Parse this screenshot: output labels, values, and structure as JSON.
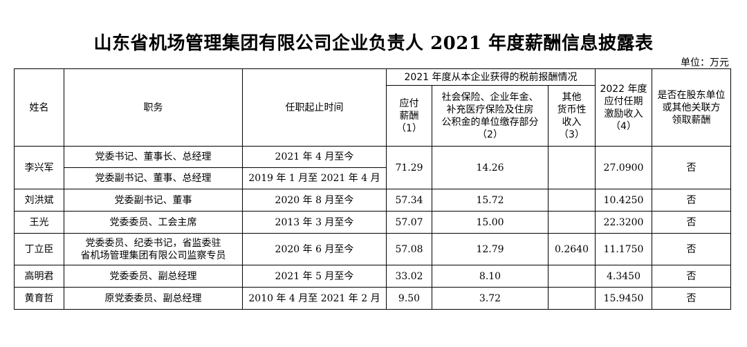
{
  "title": "山东省机场管理集团有限公司企业负责人 2021 年度薪酬信息披露表",
  "unit": "单位：万元",
  "headers": {
    "name": "姓名",
    "position": "职务",
    "term": "任职起止时间",
    "group_2021": "2021 年度从本企业获得的税前报酬情况",
    "salary": "应付\n薪酬\n（1）",
    "insurance": "社会保险、企业年金、\n补充医疗保险及住房\n公积金的单位缴存部分\n（2）",
    "other": "其他\n货币性\n收入\n（3）",
    "incentive": "2022 年度\n应付任期\n激励收入\n（4）",
    "shareholder": "是否在股东单位\n或其他关联方\n领取薪酬"
  },
  "rows": [
    {
      "name": "李兴军",
      "roles": [
        {
          "position": "党委书记、董事长、总经理",
          "term": "2021 年 4 月至今"
        },
        {
          "position": "党委副书记、董事、总经理",
          "term": "2019 年 1 月至 2021 年 4 月"
        }
      ],
      "salary": "71.29",
      "insurance": "14.26",
      "other": "",
      "incentive": "27.0900",
      "shareholder": "否"
    },
    {
      "name": "刘洪斌",
      "roles": [
        {
          "position": "党委副书记、董事",
          "term": "2020 年 8 月至今"
        }
      ],
      "salary": "57.34",
      "insurance": "15.72",
      "other": "",
      "incentive": "10.4250",
      "shareholder": "否"
    },
    {
      "name": "王光",
      "roles": [
        {
          "position": "党委委员、工会主席",
          "term": "2013 年 3 月至今"
        }
      ],
      "salary": "57.07",
      "insurance": "15.00",
      "other": "",
      "incentive": "22.3200",
      "shareholder": "否"
    },
    {
      "name": "丁立臣",
      "roles": [
        {
          "position": "党委委员、纪委书记，省监委驻\n省机场管理集团有限公司监察专员",
          "term": "2020 年 6 月至今"
        }
      ],
      "salary": "57.08",
      "insurance": "12.79",
      "other": "0.2640",
      "incentive": "11.1750",
      "shareholder": "否"
    },
    {
      "name": "高明君",
      "roles": [
        {
          "position": "党委委员、副总经理",
          "term": "2021 年 5 月至今"
        }
      ],
      "salary": "33.02",
      "insurance": "8.10",
      "other": "",
      "incentive": "4.3450",
      "shareholder": "否"
    },
    {
      "name": "黄育哲",
      "roles": [
        {
          "position": "原党委委员、副总经理",
          "term": "2010 年 4 月至 2021 年 2 月"
        }
      ],
      "salary": "9.50",
      "insurance": "3.72",
      "other": "",
      "incentive": "15.9450",
      "shareholder": "否"
    }
  ]
}
